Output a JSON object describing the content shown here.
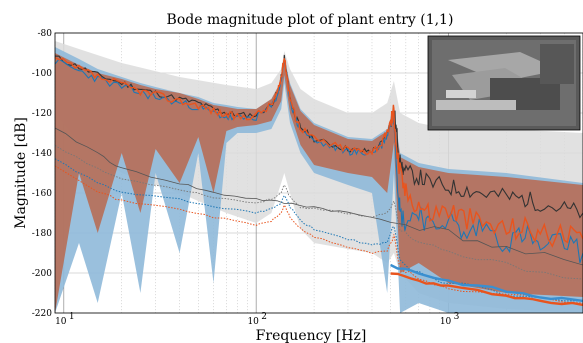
{
  "chart_data": {
    "type": "line",
    "title": "Bode magnitude plot of plant entry (1,1)",
    "xlabel": "Frequency [Hz]",
    "ylabel": "Magnitude [dB]",
    "xscale": "log",
    "xlim": [
      9,
      5000
    ],
    "ylim": [
      -220,
      -80
    ],
    "yticks": [
      -80,
      -100,
      -120,
      -140,
      -160,
      -180,
      -200,
      -220
    ],
    "xticks": [
      {
        "value": 10,
        "base": "10",
        "exp": "1"
      },
      {
        "value": 100,
        "base": "10",
        "exp": "2"
      },
      {
        "value": 1000,
        "base": "10",
        "exp": "3"
      }
    ],
    "grid": true,
    "legend": "none",
    "inset_image": "photo of precision stage hardware, top-right",
    "colors": {
      "blue": "#1f77b4",
      "blue_band": "#8fb9d9",
      "orange": "#e8541e",
      "orange_band": "#b9694f",
      "gray_band": "#dcdcdc",
      "dark": "#333333"
    },
    "series": [
      {
        "style": "band-gray",
        "x": [
          9,
          12,
          20,
          40,
          70,
          100,
          120,
          135,
          140,
          150,
          170,
          200,
          300,
          400,
          480,
          520,
          560,
          700,
          1000,
          2000,
          5000
        ],
        "y_hi": [
          -84,
          -88,
          -95,
          -102,
          -106,
          -108,
          -105,
          -98,
          -89,
          -98,
          -108,
          -113,
          -120,
          -120,
          -115,
          -104,
          -120,
          -125,
          -128,
          -128,
          -130
        ],
        "y_lo": [
          -120,
          -135,
          -150,
          -160,
          -170,
          -175,
          -170,
          -155,
          -150,
          -160,
          -178,
          -185,
          -188,
          -190,
          -195,
          -190,
          -200,
          -210,
          -215,
          -218,
          -220
        ]
      },
      {
        "style": "band-blue",
        "x": [
          9,
          12,
          15,
          20,
          25,
          30,
          40,
          50,
          60,
          70,
          80,
          100,
          120,
          135,
          140,
          150,
          170,
          200,
          300,
          400,
          480,
          520,
          560,
          700,
          1000,
          2000,
          5000
        ],
        "y_hi": [
          -87,
          -93,
          -98,
          -102,
          -105,
          -107,
          -110,
          -112,
          -115,
          -116,
          -117,
          -118,
          -113,
          -104,
          -92,
          -105,
          -118,
          -125,
          -132,
          -133,
          -128,
          -118,
          -140,
          -145,
          -148,
          -150,
          -155
        ],
        "y_lo": [
          -220,
          -185,
          -215,
          -160,
          -210,
          -150,
          -190,
          -140,
          -205,
          -135,
          -130,
          -130,
          -128,
          -118,
          -105,
          -125,
          -140,
          -150,
          -156,
          -160,
          -210,
          -150,
          -220,
          -215,
          -220,
          -220,
          -220
        ]
      },
      {
        "style": "band-orange",
        "x": [
          9,
          12,
          15,
          20,
          25,
          30,
          40,
          50,
          60,
          70,
          80,
          100,
          120,
          135,
          140,
          150,
          170,
          200,
          300,
          400,
          480,
          520,
          560,
          700,
          1000,
          2000,
          5000
        ],
        "y_hi": [
          -90,
          -96,
          -100,
          -103,
          -106,
          -108,
          -110,
          -113,
          -116,
          -117,
          -118,
          -118,
          -113,
          -104,
          -93,
          -106,
          -119,
          -126,
          -133,
          -134,
          -129,
          -119,
          -142,
          -147,
          -150,
          -152,
          -156
        ],
        "y_lo": [
          -220,
          -150,
          -180,
          -140,
          -170,
          -138,
          -155,
          -132,
          -160,
          -129,
          -127,
          -126,
          -124,
          -114,
          -101,
          -120,
          -136,
          -146,
          -150,
          -152,
          -160,
          -135,
          -200,
          -195,
          -205,
          -210,
          -212
        ]
      },
      {
        "style": "line-dark",
        "x": [
          9,
          12,
          15,
          20,
          25,
          30,
          40,
          50,
          60,
          70,
          80,
          100,
          120,
          130,
          135,
          140,
          145,
          150,
          160,
          170,
          200,
          250,
          300,
          350,
          400,
          450,
          480,
          500,
          520,
          540,
          560,
          600,
          700,
          800,
          1000,
          1200,
          1500,
          2000,
          2500,
          3000,
          4000,
          5000
        ],
        "y": [
          -92,
          -97,
          -101,
          -105,
          -108,
          -110,
          -113,
          -115,
          -118,
          -120,
          -121,
          -121,
          -116,
          -109,
          -102,
          -92,
          -102,
          -112,
          -122,
          -127,
          -133,
          -136,
          -138,
          -139,
          -139,
          -135,
          -130,
          -124,
          -118,
          -132,
          -145,
          -150,
          -152,
          -155,
          -157,
          -158,
          -160,
          -162,
          -163,
          -165,
          -168,
          -170
        ]
      },
      {
        "style": "line-blue",
        "x": [
          9,
          12,
          15,
          20,
          25,
          30,
          40,
          50,
          60,
          70,
          80,
          100,
          120,
          130,
          135,
          140,
          145,
          150,
          160,
          170,
          200,
          250,
          300,
          350,
          400,
          450,
          480,
          500,
          520,
          540,
          560,
          600,
          700,
          800,
          1000,
          1200,
          1500,
          2000,
          2500,
          3000,
          4000,
          5000
        ],
        "y": [
          -94,
          -99,
          -103,
          -107,
          -110,
          -112,
          -115,
          -117,
          -120,
          -122,
          -123,
          -122,
          -117,
          -110,
          -103,
          -93,
          -103,
          -113,
          -123,
          -128,
          -134,
          -137,
          -139,
          -140,
          -140,
          -136,
          -131,
          -125,
          -119,
          -150,
          -170,
          -175,
          -168,
          -178,
          -172,
          -182,
          -176,
          -185,
          -180,
          -188,
          -184,
          -190
        ]
      },
      {
        "style": "line-orange",
        "x": [
          9,
          12,
          15,
          20,
          25,
          30,
          40,
          50,
          60,
          70,
          80,
          100,
          120,
          130,
          135,
          140,
          145,
          150,
          160,
          170,
          200,
          250,
          300,
          350,
          400,
          450,
          480,
          500,
          520,
          540,
          560,
          600,
          700,
          800,
          1000,
          1200,
          1500,
          2000,
          2500,
          3000,
          4000,
          5000
        ],
        "y": [
          -93,
          -98,
          -102,
          -106,
          -109,
          -111,
          -114,
          -116,
          -119,
          -121,
          -122,
          -121,
          -116,
          -109,
          -102,
          -92,
          -102,
          -112,
          -122,
          -127,
          -133,
          -136,
          -138,
          -139,
          -139,
          -135,
          -130,
          -124,
          -119,
          -140,
          -150,
          -160,
          -165,
          -170,
          -168,
          -172,
          -175,
          -178,
          -177,
          -180,
          -182,
          -183
        ]
      },
      {
        "style": "line-dark-thin",
        "x": [
          9,
          15,
          20,
          40,
          60,
          100,
          140,
          200,
          300,
          500,
          1000,
          2000,
          5000
        ],
        "y": [
          -128,
          -140,
          -148,
          -155,
          -160,
          -163,
          -165,
          -167,
          -170,
          -174,
          -180,
          -188,
          -196
        ]
      },
      {
        "style": "dotted-gray",
        "x": [
          9,
          15,
          20,
          40,
          60,
          100,
          120,
          135,
          140,
          150,
          170,
          200,
          300,
          400,
          480,
          520,
          560,
          700,
          1000,
          2000,
          5000
        ],
        "y": [
          -136,
          -148,
          -153,
          -158,
          -162,
          -165,
          -163,
          -160,
          -156,
          -162,
          -167,
          -168,
          -170,
          -172,
          -170,
          -165,
          -178,
          -185,
          -190,
          -196,
          -203
        ]
      },
      {
        "style": "dotted-blue",
        "x": [
          9,
          15,
          20,
          40,
          60,
          100,
          120,
          135,
          140,
          150,
          170,
          200,
          300,
          400,
          480,
          520,
          560,
          700,
          1000,
          2000,
          5000
        ],
        "y": [
          -143,
          -155,
          -160,
          -163,
          -167,
          -170,
          -168,
          -165,
          -161,
          -167,
          -174,
          -178,
          -183,
          -186,
          -185,
          -176,
          -194,
          -200,
          -205,
          -210,
          -214
        ]
      },
      {
        "style": "dotted-orange",
        "x": [
          9,
          15,
          20,
          40,
          60,
          100,
          120,
          135,
          140,
          150,
          170,
          200,
          300,
          400,
          480,
          520,
          560,
          700,
          1000,
          2000,
          5000
        ],
        "y": [
          -146,
          -159,
          -164,
          -168,
          -172,
          -176,
          -174,
          -170,
          -166,
          -172,
          -178,
          -182,
          -187,
          -190,
          -189,
          -181,
          -198,
          -203,
          -207,
          -211,
          -215
        ]
      },
      {
        "style": "line-blue-thick",
        "x": [
          500,
          700,
          1000,
          2000,
          3000,
          5000
        ],
        "y": [
          -196,
          -200,
          -204,
          -209,
          -212,
          -214
        ]
      },
      {
        "style": "line-orange-thick",
        "x": [
          500,
          700,
          1000,
          2000,
          3000,
          5000
        ],
        "y": [
          -200,
          -204,
          -207,
          -211,
          -214,
          -216
        ]
      }
    ]
  }
}
